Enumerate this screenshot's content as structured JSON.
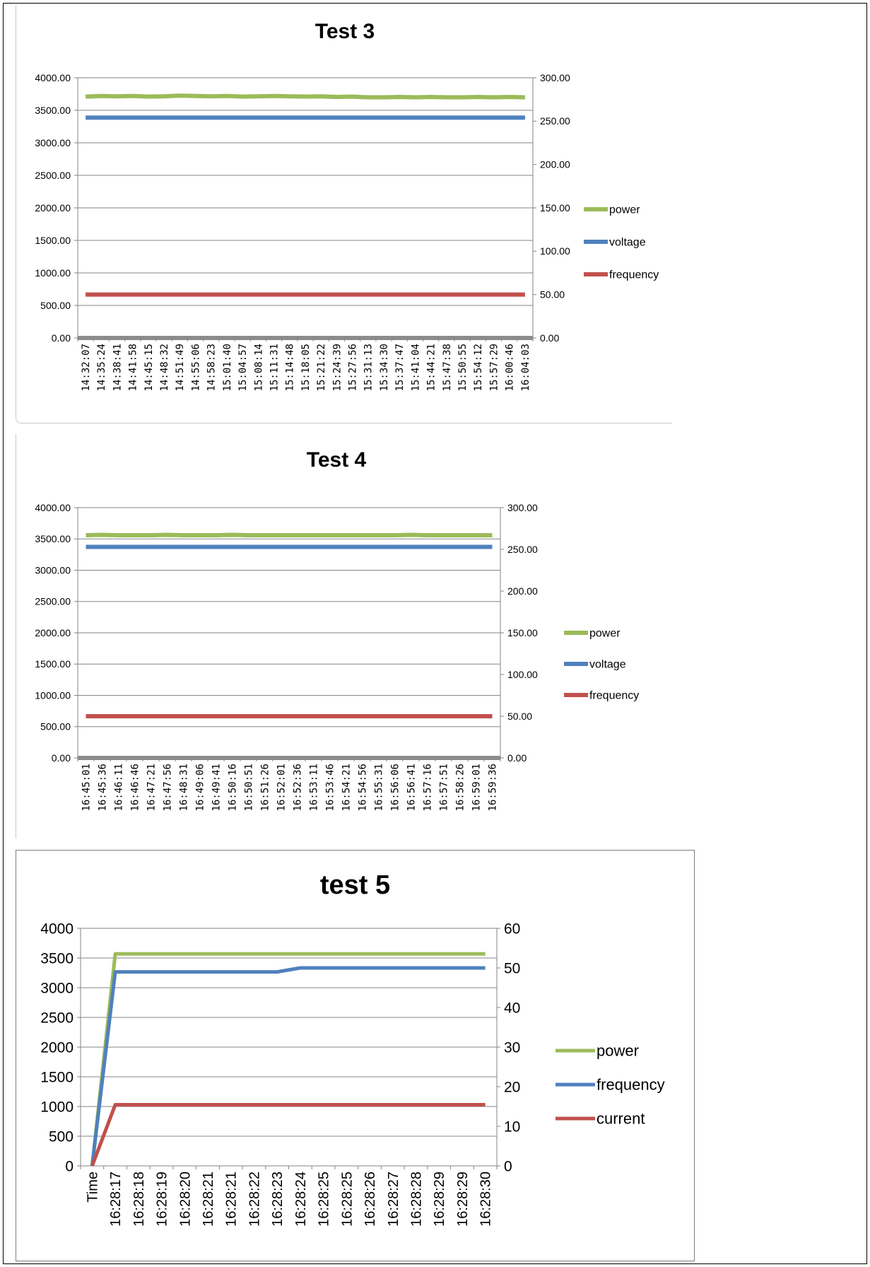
{
  "chart_data": [
    {
      "type": "line",
      "title": "Test 3",
      "categories": [
        "14:32:07",
        "14:35:24",
        "14:38:41",
        "14:41:58",
        "14:45:15",
        "14:48:32",
        "14:51:49",
        "14:55:06",
        "14:58:23",
        "15:01:40",
        "15:04:57",
        "15:08:14",
        "15:11:31",
        "15:14:48",
        "15:18:05",
        "15:21:22",
        "15:24:39",
        "15:27:56",
        "15:31:13",
        "15:34:30",
        "15:37:47",
        "15:41:04",
        "15:44:21",
        "15:47:38",
        "15:50:55",
        "15:54:12",
        "15:57:29",
        "16:00:46",
        "16:04:03"
      ],
      "y_left": {
        "ticks": [
          "0.00",
          "500.00",
          "1000.00",
          "1500.00",
          "2000.00",
          "2500.00",
          "3000.00",
          "3500.00",
          "4000.00"
        ],
        "ylim": [
          0,
          4000
        ]
      },
      "y_right": {
        "ticks": [
          "0.00",
          "50.00",
          "100.00",
          "150.00",
          "200.00",
          "250.00",
          "300.00"
        ],
        "ylim": [
          0,
          300
        ]
      },
      "series": [
        {
          "name": "power",
          "axis": "left",
          "color": "#9bbb59",
          "values": [
            3710,
            3720,
            3715,
            3720,
            3710,
            3715,
            3725,
            3720,
            3715,
            3720,
            3710,
            3715,
            3720,
            3715,
            3710,
            3715,
            3705,
            3710,
            3700,
            3700,
            3705,
            3700,
            3705,
            3700,
            3700,
            3705,
            3700,
            3705,
            3700
          ]
        },
        {
          "name": "voltage",
          "axis": "right",
          "color": "#4f81bd",
          "values": [
            254,
            254,
            254,
            254,
            254,
            254,
            254,
            254,
            254,
            254,
            254,
            254,
            254,
            254,
            254,
            254,
            254,
            254,
            254,
            254,
            254,
            254,
            254,
            254,
            254,
            254,
            254,
            254,
            254
          ]
        },
        {
          "name": "frequency",
          "axis": "right",
          "color": "#c0504d",
          "values": [
            50,
            50,
            50,
            50,
            50,
            50,
            50,
            50,
            50,
            50,
            50,
            50,
            50,
            50,
            50,
            50,
            50,
            50,
            50,
            50,
            50,
            50,
            50,
            50,
            50,
            50,
            50,
            50,
            50
          ]
        }
      ],
      "legend": "right",
      "grid": true
    },
    {
      "type": "line",
      "title": "Test 4",
      "categories": [
        "16:45:01",
        "16:45:36",
        "16:46:11",
        "16:46:46",
        "16:47:21",
        "16:47:56",
        "16:48:31",
        "16:49:06",
        "16:49:41",
        "16:50:16",
        "16:50:51",
        "16:51:26",
        "16:52:01",
        "16:52:36",
        "16:53:11",
        "16:53:46",
        "16:54:21",
        "16:54:56",
        "16:55:31",
        "16:56:06",
        "16:56:41",
        "16:57:16",
        "16:57:51",
        "16:58:26",
        "16:59:01",
        "16:59:36"
      ],
      "y_left": {
        "ticks": [
          "0.00",
          "500.00",
          "1000.00",
          "1500.00",
          "2000.00",
          "2500.00",
          "3000.00",
          "3500.00",
          "4000.00"
        ],
        "ylim": [
          0,
          4000
        ]
      },
      "y_right": {
        "ticks": [
          "0.00",
          "50.00",
          "100.00",
          "150.00",
          "200.00",
          "250.00",
          "300.00"
        ],
        "ylim": [
          0,
          300
        ]
      },
      "series": [
        {
          "name": "power",
          "axis": "left",
          "color": "#9bbb59",
          "values": [
            3560,
            3565,
            3560,
            3560,
            3560,
            3565,
            3560,
            3560,
            3560,
            3565,
            3560,
            3560,
            3560,
            3560,
            3560,
            3560,
            3560,
            3560,
            3560,
            3560,
            3565,
            3560,
            3560,
            3560,
            3560,
            3560
          ]
        },
        {
          "name": "voltage",
          "axis": "right",
          "color": "#4f81bd",
          "values": [
            253,
            253,
            253,
            253,
            253,
            253,
            253,
            253,
            253,
            253,
            253,
            253,
            253,
            253,
            253,
            253,
            253,
            253,
            253,
            253,
            253,
            253,
            253,
            253,
            253,
            253
          ]
        },
        {
          "name": "frequency",
          "axis": "right",
          "color": "#c0504d",
          "values": [
            50,
            50,
            50,
            50,
            50,
            50,
            50,
            50,
            50,
            50,
            50,
            50,
            50,
            50,
            50,
            50,
            50,
            50,
            50,
            50,
            50,
            50,
            50,
            50,
            50,
            50
          ]
        }
      ],
      "legend": "right",
      "grid": true
    },
    {
      "type": "line",
      "title": "test 5",
      "categories": [
        "Time",
        "16:28:17",
        "16:28:18",
        "16:28:19",
        "16:28:20",
        "16:28:21",
        "16:28:21",
        "16:28:22",
        "16:28:23",
        "16:28:24",
        "16:28:25",
        "16:28:25",
        "16:28:26",
        "16:28:27",
        "16:28:28",
        "16:28:29",
        "16:28:29",
        "16:28:30"
      ],
      "y_left": {
        "ticks": [
          "0",
          "500",
          "1000",
          "1500",
          "2000",
          "2500",
          "3000",
          "3500",
          "4000"
        ],
        "ylim": [
          0,
          4000
        ]
      },
      "y_right": {
        "ticks": [
          "0",
          "10",
          "20",
          "30",
          "40",
          "50",
          "60"
        ],
        "ylim": [
          0,
          60
        ]
      },
      "series": [
        {
          "name": "power",
          "axis": "left",
          "color": "#9bbb59",
          "values": [
            0,
            3570,
            3570,
            3570,
            3570,
            3570,
            3570,
            3570,
            3570,
            3570,
            3570,
            3570,
            3570,
            3570,
            3570,
            3570,
            3570,
            3570
          ]
        },
        {
          "name": "frequency",
          "axis": "right",
          "color": "#4f81bd",
          "values": [
            0,
            49,
            49,
            49,
            49,
            49,
            49,
            49,
            49,
            50,
            50,
            50,
            50,
            50,
            50,
            50,
            50,
            50
          ]
        },
        {
          "name": "current",
          "axis": "left",
          "color": "#c0504d",
          "values": [
            0,
            1030,
            1030,
            1030,
            1030,
            1030,
            1030,
            1030,
            1030,
            1030,
            1030,
            1030,
            1030,
            1030,
            1030,
            1030,
            1030,
            1030
          ]
        }
      ],
      "legend": "right",
      "grid": true
    }
  ]
}
